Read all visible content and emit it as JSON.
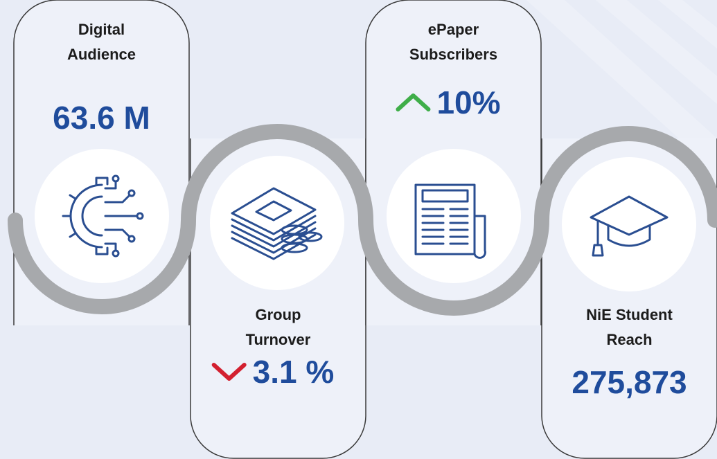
{
  "cards": [
    {
      "title": [
        "Digital",
        "Audience"
      ],
      "value": "63.6 M"
    },
    {
      "title": [
        "Group",
        "Turnover"
      ],
      "value": "3.1 %",
      "trend": "down"
    },
    {
      "title": [
        "ePaper",
        "Subscribers"
      ],
      "value": "10%",
      "trend": "up"
    },
    {
      "title": [
        "NiE Student",
        "Reach"
      ],
      "value": "275,873"
    }
  ]
}
